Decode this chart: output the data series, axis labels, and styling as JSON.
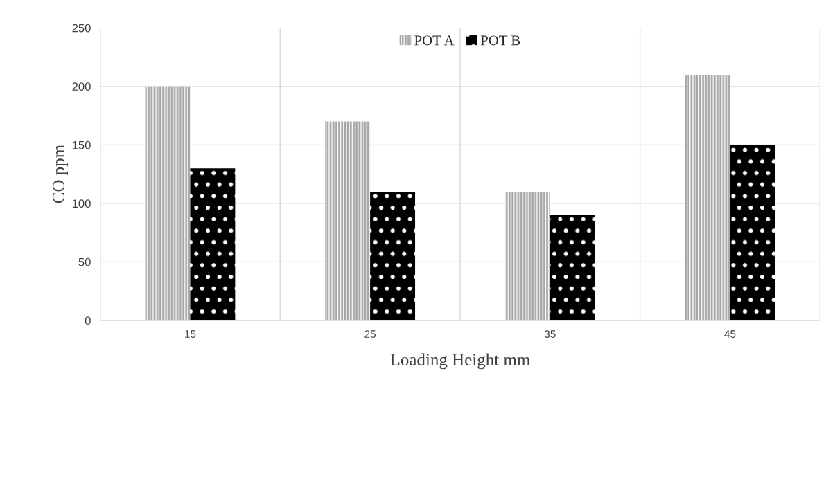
{
  "chart_data": {
    "type": "bar",
    "xlabel": "Loading Height mm",
    "ylabel": "CO ppm",
    "categories": [
      "15",
      "25",
      "35",
      "45"
    ],
    "series": [
      {
        "name": "POT A",
        "color": "#a6a6a6",
        "values": [
          200,
          170,
          110,
          210
        ]
      },
      {
        "name": "POT B",
        "color": "#000000",
        "values": [
          130,
          110,
          90,
          150
        ]
      }
    ],
    "ylim": [
      0,
      250
    ],
    "yticks": [
      0,
      50,
      100,
      150,
      200,
      250
    ],
    "grid": true,
    "legend": "top"
  }
}
